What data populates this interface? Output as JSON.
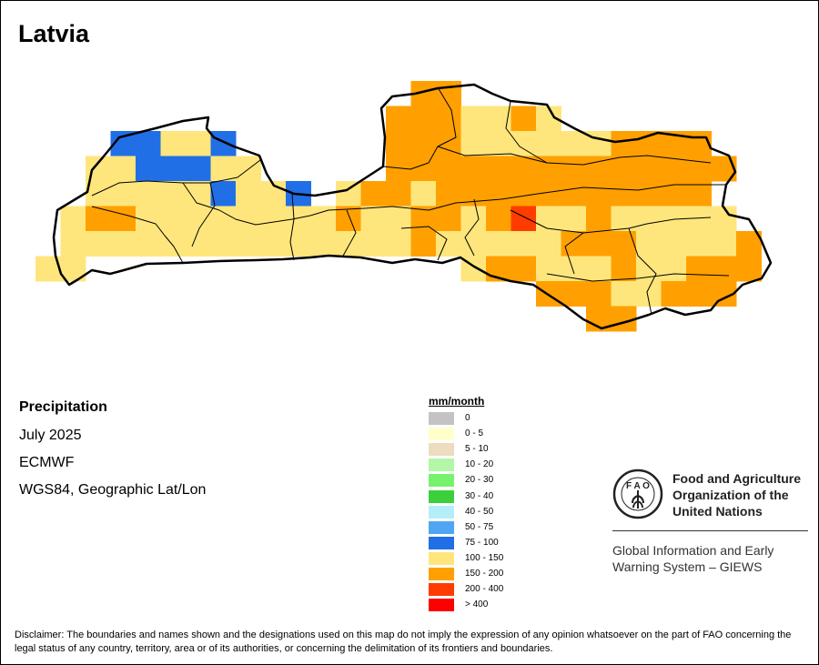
{
  "title": "Latvia",
  "info": {
    "variable": "Precipitation",
    "period": "July 2025",
    "source": "ECMWF",
    "projection": "WGS84, Geographic Lat/Lon"
  },
  "legend": {
    "title": "mm/month",
    "items": [
      {
        "label": "0",
        "color": "#c3c3c3"
      },
      {
        "label": "0 - 5",
        "color": "#ffffcc"
      },
      {
        "label": "5 - 10",
        "color": "#eedcbf"
      },
      {
        "label": "10 - 20",
        "color": "#b4f7a8"
      },
      {
        "label": "20 - 30",
        "color": "#78f26c"
      },
      {
        "label": "30 - 40",
        "color": "#3ccf3c"
      },
      {
        "label": "40 - 50",
        "color": "#b4eef8"
      },
      {
        "label": "50 - 75",
        "color": "#50a6f2"
      },
      {
        "label": "75 - 100",
        "color": "#206fe6"
      },
      {
        "label": "100 - 150",
        "color": "#ffe67c"
      },
      {
        "label": "150 - 200",
        "color": "#ffa000"
      },
      {
        "label": "200 - 400",
        "color": "#ff3c00"
      },
      {
        "label": "> 400",
        "color": "#ff0000"
      }
    ]
  },
  "grid": {
    "codes": {
      "Y": "100 - 150",
      "O": "150 - 200",
      "B": "75 - 100",
      "R": "200 - 400"
    },
    "colors": {
      "Y": "#ffe67c",
      "O": "#ffa000",
      "B": "#206fe6",
      "R": "#ff3c00"
    },
    "rows": [
      "...............OO............",
      "..............OOOYYOY........",
      "...BBYYB......OOOYYYYYYOOOO..",
      "..YYBBBYY.....OOOOOOOOOOOOOO.",
      "..YYYYYBYYB.YOOYOOOOOOOOOOO..",
      ".YOOYYYYYYYYOYYOOYORYYOYYYYY.",
      ".YYYYYYYYYYYYYYOYYYYYOOOYYYYO",
      "YY...............YOOYYYOYYOOO",
      "....................OOOYYOOO.",
      "......................OO....."
    ]
  },
  "fao": {
    "name_lines": [
      "Food and Agriculture",
      "Organization of the",
      "United Nations"
    ],
    "emblem_text": "FAO",
    "emblem_motto": "FIAT PANIS",
    "giews_lines": [
      "Global Information and Early",
      "Warning System – GIEWS"
    ]
  },
  "disclaimer": "Disclaimer: The boundaries and names shown and the designations used on this map do not imply the expression of any opinion whatsoever on the part of FAO concerning the legal status of any country, territory, area or of its authorities, or concerning the delimitation of its frontiers and boundaries."
}
